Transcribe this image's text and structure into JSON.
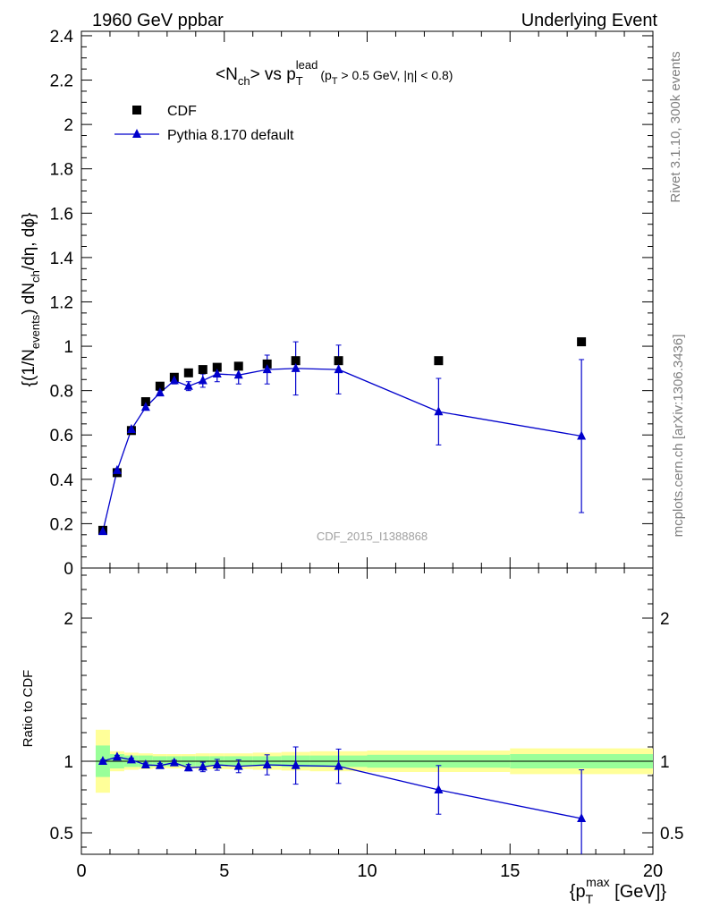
{
  "header": {
    "left": "1960 GeV ppbar",
    "right": "Underlying Event"
  },
  "side_labels": {
    "rivet": "Rivet 3.1.10,  300k events",
    "mcplots": "mcplots.cern.ch [arXiv:1306.3436]"
  },
  "title": {
    "lhs_main": "<N",
    "lhs_sub": "ch",
    "mid": "> vs p",
    "mid_sub": "T",
    "mid_sup": "lead",
    "cut_open": "(p",
    "cut_sub": "T",
    "cut_rest": " > 0.5 GeV, |η| < 0.8)"
  },
  "watermark": "CDF_2015_I1388868",
  "y_label": {
    "a": "{(1/N",
    "a_sub": "events",
    "b": ") dN",
    "b_sub": "ch",
    "c": "/dη, dϕ}"
  },
  "ratio_label": "Ratio to CDF",
  "x_label": {
    "open": "{p",
    "sub": "T",
    "sup": "max",
    "rest": " [GeV]}"
  },
  "colors": {
    "data": "#000000",
    "mc": "#0000cc",
    "band_inner": "#99ff99",
    "band_outer": "#ffff99",
    "side_text": "#808080"
  },
  "chart_data": {
    "type": "scatter",
    "xlim": [
      0,
      20
    ],
    "ylim": [
      0,
      2.42
    ],
    "x_ticks": [
      "0",
      "5",
      "10",
      "15",
      "20"
    ],
    "y_ticks": [
      "0",
      "0.2",
      "0.4",
      "0.6",
      "0.8",
      "1",
      "1.2",
      "1.4",
      "1.6",
      "1.8",
      "2",
      "2.2",
      "2.4"
    ],
    "legend": {
      "placement": "top-left"
    },
    "series": [
      {
        "name": "CDF",
        "marker": "square",
        "x": [
          0.75,
          1.25,
          1.75,
          2.25,
          2.75,
          3.25,
          3.75,
          4.25,
          4.75,
          5.5,
          6.5,
          7.5,
          9.0,
          12.5,
          17.5
        ],
        "y": [
          0.17,
          0.43,
          0.62,
          0.75,
          0.82,
          0.86,
          0.88,
          0.895,
          0.905,
          0.91,
          0.92,
          0.935,
          0.935,
          0.935,
          1.02
        ]
      },
      {
        "name": "Pythia 8.170 default",
        "marker": "triangle",
        "line": true,
        "x": [
          0.75,
          1.25,
          1.75,
          2.25,
          2.75,
          3.25,
          3.75,
          4.25,
          4.75,
          5.5,
          6.5,
          7.5,
          9.0,
          12.5,
          17.5
        ],
        "y": [
          0.165,
          0.44,
          0.625,
          0.725,
          0.79,
          0.845,
          0.82,
          0.845,
          0.875,
          0.87,
          0.895,
          0.9,
          0.895,
          0.705,
          0.595
        ],
        "yerr": [
          0.005,
          0.005,
          0.008,
          0.01,
          0.01,
          0.015,
          0.02,
          0.03,
          0.035,
          0.04,
          0.065,
          0.12,
          0.11,
          0.15,
          0.345
        ]
      }
    ],
    "ratio": {
      "ylabel": "Ratio to CDF",
      "ylim": [
        0.35,
        2.35
      ],
      "y_ticks": [
        "0.5",
        "1",
        "2"
      ],
      "band_edges": [
        0.5,
        1.0,
        1.5,
        2.0,
        2.5,
        3.0,
        3.5,
        4.0,
        4.5,
        5.0,
        6.0,
        7.0,
        8.0,
        10.0,
        15.0,
        20.0
      ],
      "band_inner": [
        0.11,
        0.05,
        0.04,
        0.04,
        0.035,
        0.035,
        0.035,
        0.035,
        0.035,
        0.035,
        0.035,
        0.04,
        0.04,
        0.045,
        0.05
      ],
      "band_outer": [
        0.22,
        0.07,
        0.06,
        0.055,
        0.05,
        0.05,
        0.05,
        0.055,
        0.055,
        0.055,
        0.06,
        0.065,
        0.07,
        0.075,
        0.09
      ],
      "x": [
        0.75,
        1.25,
        1.75,
        2.25,
        2.75,
        3.25,
        3.75,
        4.25,
        4.75,
        5.5,
        6.5,
        7.5,
        9.0,
        12.5,
        17.5
      ],
      "y": [
        1.0,
        1.03,
        1.01,
        0.975,
        0.97,
        0.99,
        0.955,
        0.96,
        0.975,
        0.965,
        0.975,
        0.97,
        0.965,
        0.8,
        0.6
      ],
      "yerr": [
        0.01,
        0.01,
        0.012,
        0.013,
        0.015,
        0.017,
        0.022,
        0.033,
        0.038,
        0.045,
        0.07,
        0.13,
        0.12,
        0.17,
        0.34
      ]
    }
  }
}
